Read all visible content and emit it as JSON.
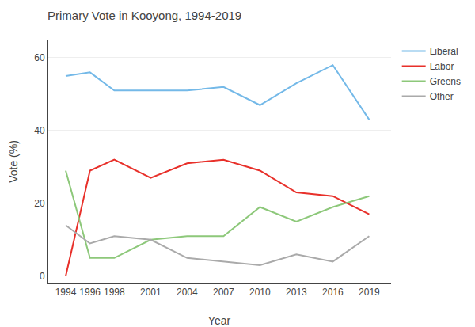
{
  "chart_data": {
    "type": "line",
    "title": "Primary Vote in Kooyong, 1994-2019",
    "xlabel": "Year",
    "ylabel": "Vote (%)",
    "x": [
      1994,
      1996,
      1998,
      2001,
      2004,
      2007,
      2010,
      2013,
      2016,
      2019
    ],
    "series": [
      {
        "name": "Liberal",
        "color": "#74b9e8",
        "values": [
          55,
          56,
          51,
          51,
          51,
          52,
          47,
          53,
          58,
          43
        ]
      },
      {
        "name": "Labor",
        "color": "#e8302a",
        "values": [
          0,
          29,
          32,
          27,
          31,
          32,
          29,
          23,
          22,
          17
        ]
      },
      {
        "name": "Greens",
        "color": "#8dc87a",
        "values": [
          29,
          5,
          5,
          10,
          11,
          11,
          19,
          15,
          19,
          22
        ]
      },
      {
        "name": "Other",
        "color": "#aaaaaa",
        "values": [
          14,
          9,
          11,
          10,
          5,
          4,
          3,
          6,
          4,
          11
        ]
      }
    ],
    "xlim": [
      1992.5,
      2020.8
    ],
    "xticks": [
      1994,
      1996,
      1998,
      2001,
      2004,
      2007,
      2010,
      2013,
      2016,
      2019
    ],
    "ylim": [
      -2,
      65
    ],
    "yticks": [
      0,
      20,
      40,
      60
    ],
    "grid": "y",
    "legend": "upper right"
  }
}
